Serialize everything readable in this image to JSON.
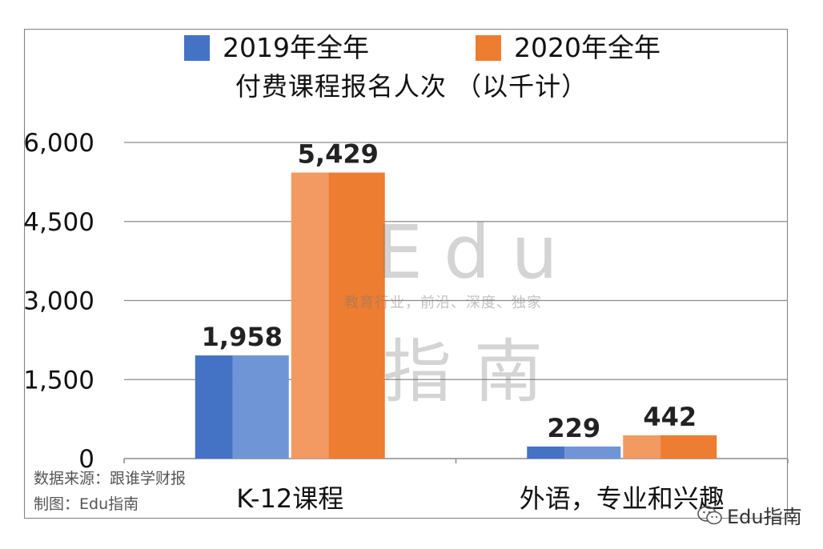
{
  "chart_data": {
    "type": "bar",
    "title": "付费课程报名人次 （以千计）",
    "categories": [
      "K-12课程",
      "外语，专业和兴趣"
    ],
    "series": [
      {
        "name": "2019年全年",
        "values": [
          1958,
          229
        ],
        "labels": [
          "1,958",
          "229"
        ],
        "color": "#4472c4"
      },
      {
        "name": "2020年全年",
        "values": [
          5429,
          442
        ],
        "labels": [
          "5,429",
          "442"
        ],
        "color": "#ed7d31"
      }
    ],
    "ylim": [
      0,
      6000
    ],
    "yticks": [
      0,
      1500,
      3000,
      4500,
      6000
    ],
    "ytick_labels": [
      "0",
      "1,500",
      "3,000",
      "4,500",
      "6,000"
    ],
    "grid": true,
    "legend_position": "top"
  },
  "credits": {
    "source": "数据来源：跟谁学财报",
    "maker": "制图：Edu指南"
  },
  "watermark": {
    "brand": "Edu",
    "tagline": "教育行业，前沿、深度、独家",
    "name": "指南"
  },
  "brand_badge": {
    "text": "Edu指南",
    "icon": "wechat-icon"
  }
}
